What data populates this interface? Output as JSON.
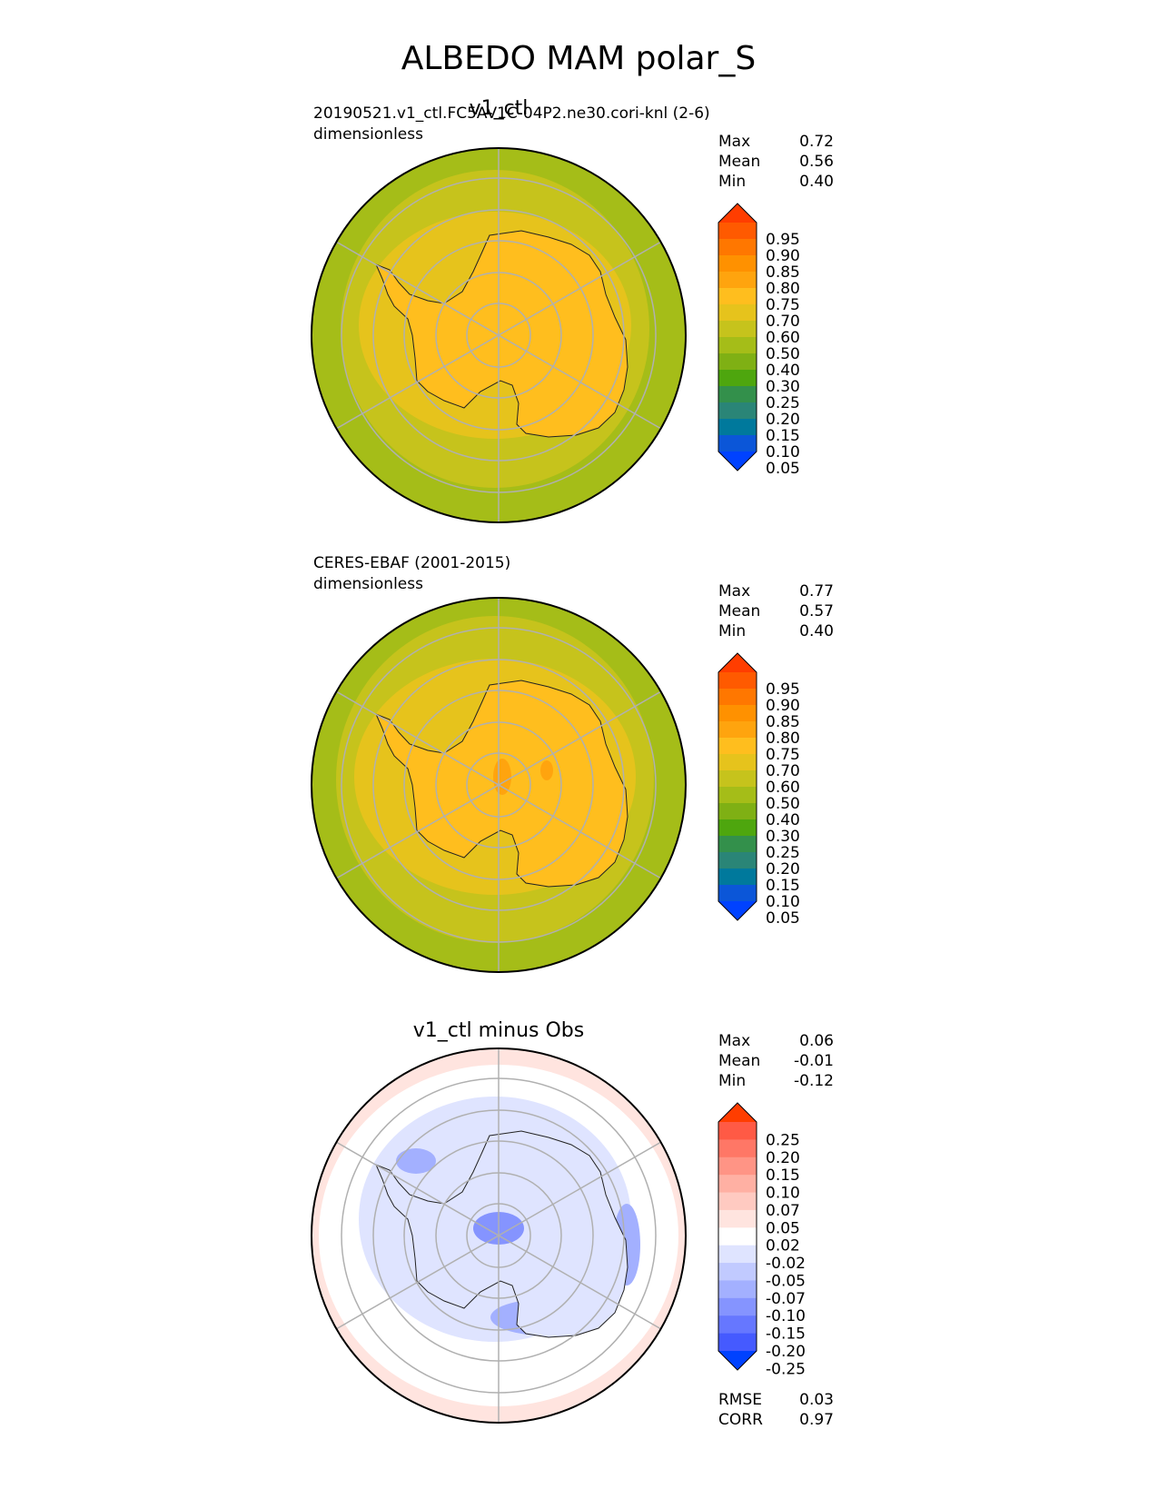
{
  "figure": {
    "title": "ALBEDO MAM polar_S"
  },
  "chart_data": [
    {
      "type": "heatmap",
      "projection": "south-polar-stereographic",
      "title": "v1_ctl",
      "subtitle": "20190521.v1_ctl.FC5AV1C-04P2.ne30.cori-knl (2-6)",
      "units": "dimensionless",
      "stats": [
        {
          "label": "Max",
          "value": "0.72"
        },
        {
          "label": "Mean",
          "value": "0.56"
        },
        {
          "label": "Min",
          "value": "0.40"
        }
      ],
      "colorbar": {
        "ticks": [
          "0.95",
          "0.90",
          "0.85",
          "0.80",
          "0.75",
          "0.70",
          "0.60",
          "0.50",
          "0.40",
          "0.30",
          "0.25",
          "0.20",
          "0.15",
          "0.10",
          "0.05"
        ],
        "colors": [
          "#ff3d00",
          "#ff5a00",
          "#ff7700",
          "#ff9100",
          "#ffa40e",
          "#ffbe1e",
          "#e6c31c",
          "#c6c31c",
          "#a5bd18",
          "#7fb014",
          "#4ea60e",
          "#33904b",
          "#2a8577",
          "#00799c",
          "#0b56d8",
          "#0042ff"
        ],
        "extend": "both"
      },
      "field": {
        "ocean_value": 0.45,
        "outer_ice_band_value": 0.55,
        "continent_value": 0.72
      }
    },
    {
      "type": "heatmap",
      "projection": "south-polar-stereographic",
      "title": "",
      "subtitle": "CERES-EBAF (2001-2015)",
      "units": "dimensionless",
      "stats": [
        {
          "label": "Max",
          "value": "0.77"
        },
        {
          "label": "Mean",
          "value": "0.57"
        },
        {
          "label": "Min",
          "value": "0.40"
        }
      ],
      "colorbar": {
        "ticks": [
          "0.95",
          "0.90",
          "0.85",
          "0.80",
          "0.75",
          "0.70",
          "0.60",
          "0.50",
          "0.40",
          "0.30",
          "0.25",
          "0.20",
          "0.15",
          "0.10",
          "0.05"
        ],
        "colors": [
          "#ff3d00",
          "#ff5a00",
          "#ff7700",
          "#ff9100",
          "#ffa40e",
          "#ffbe1e",
          "#e6c31c",
          "#c6c31c",
          "#a5bd18",
          "#7fb014",
          "#4ea60e",
          "#33904b",
          "#2a8577",
          "#00799c",
          "#0b56d8",
          "#0042ff"
        ],
        "extend": "both"
      },
      "field": {
        "ocean_value": 0.45,
        "outer_ice_band_value": 0.57,
        "continent_value": 0.73
      }
    },
    {
      "type": "heatmap",
      "projection": "south-polar-stereographic",
      "title": "v1_ctl minus Obs",
      "subtitle": "",
      "units": "",
      "stats": [
        {
          "label": "Max",
          "value": "0.06"
        },
        {
          "label": "Mean",
          "value": "-0.01"
        },
        {
          "label": "Min",
          "value": "-0.12"
        }
      ],
      "colorbar": {
        "ticks": [
          "0.25",
          "0.20",
          "0.15",
          "0.10",
          "0.07",
          "0.05",
          "0.02",
          "-0.02",
          "-0.05",
          "-0.07",
          "-0.10",
          "-0.15",
          "-0.20",
          "-0.25"
        ],
        "colors": [
          "#ff3d00",
          "#ff5a45",
          "#ff7766",
          "#ff9485",
          "#ffb0a3",
          "#ffcac1",
          "#ffe4df",
          "#ffffff",
          "#dfe4ff",
          "#c1caff",
          "#a3b0ff",
          "#8594ff",
          "#6677ff",
          "#455aff",
          "#0042ff"
        ],
        "extend": "both"
      },
      "field": {
        "outer_ring_value": 0.03,
        "ice_band_value": -0.04,
        "continent_value": -0.03
      },
      "metrics": [
        {
          "label": "RMSE",
          "value": "0.03"
        },
        {
          "label": "CORR",
          "value": "0.97"
        }
      ]
    }
  ]
}
